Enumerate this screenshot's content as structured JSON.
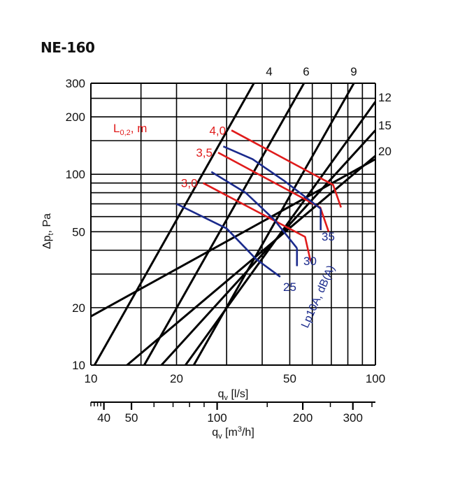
{
  "title": "NE-160",
  "colors": {
    "grid": "#000000",
    "system": "#000000",
    "throw": "#e01b1b",
    "noise": "#1a2a8c"
  },
  "chart_data": {
    "type": "line",
    "title": "NE-160",
    "xlabel": "q_v [l/s]",
    "ylabel": "Δp_t, Pa",
    "x2label": "q_v [m³/h]",
    "xscale": "log",
    "yscale": "log",
    "xlim": [
      10,
      100
    ],
    "ylim": [
      10,
      300
    ],
    "x_ticks": [
      10,
      20,
      50,
      100
    ],
    "y_ticks": [
      10,
      20,
      50,
      100,
      200,
      300
    ],
    "x2_ticks": [
      40,
      50,
      100,
      200,
      300
    ],
    "grid": true,
    "system_curves": [
      {
        "label": "4",
        "x": [
          10.3,
          37.4
        ],
        "y": [
          10,
          300
        ]
      },
      {
        "label": "6",
        "x": [
          15.4,
          56.1
        ],
        "y": [
          10,
          300
        ]
      },
      {
        "label": "9",
        "x": [
          23.0,
          84.0
        ],
        "y": [
          10,
          300
        ]
      },
      {
        "label": "12",
        "x": [
          21.5,
          100
        ],
        "y": [
          10,
          240
        ]
      },
      {
        "label": "15",
        "x": [
          17.7,
          100
        ],
        "y": [
          10,
          170
        ]
      },
      {
        "label": "20",
        "x": [
          13.4,
          100
        ],
        "y": [
          10,
          125
        ]
      },
      {
        "label": "",
        "x": [
          10,
          100
        ],
        "y": [
          18,
          120
        ]
      }
    ],
    "throw_label": "L0,2, m",
    "throw_lines": [
      {
        "label": "4,0",
        "x": [
          31.2,
          71.0,
          75.7
        ],
        "y": [
          170,
          88,
          67
        ]
      },
      {
        "label": "3,5",
        "x": [
          28.0,
          64.0,
          68.5
        ],
        "y": [
          130,
          67,
          50
        ]
      },
      {
        "label": "3,0",
        "x": [
          24.8,
          56.6,
          59.2
        ],
        "y": [
          90,
          47,
          35
        ]
      }
    ],
    "noise_label": "Lp10A, dB(A)",
    "noise_lines": [
      {
        "label": "25",
        "x": [
          20.0,
          30.0,
          38.0,
          46.3
        ],
        "y": [
          70,
          52,
          36,
          29
        ]
      },
      {
        "label": "30",
        "x": [
          26.5,
          35.0,
          44.0,
          53.0
        ],
        "y": [
          103,
          80,
          58,
          41
        ]
      },
      {
        "label": "35",
        "x": [
          29.2,
          37.0,
          48.0,
          64.2
        ],
        "y": [
          140,
          120,
          92,
          66
        ]
      }
    ],
    "noise_end_markers": [
      {
        "x": [
          53.0,
          53.0
        ],
        "y": [
          41,
          33
        ]
      },
      {
        "x": [
          64.2,
          64.2
        ],
        "y": [
          66,
          51
        ]
      }
    ]
  }
}
